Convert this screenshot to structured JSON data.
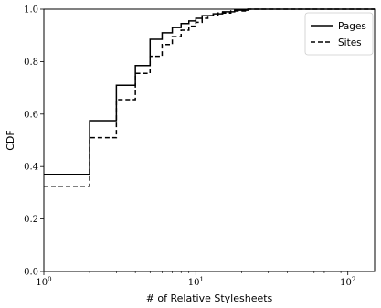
{
  "chart_data": {
    "type": "line",
    "xlabel": "# of Relative Stylesheets",
    "ylabel": "CDF",
    "xscale": "log",
    "xlim": [
      1,
      150
    ],
    "ylim": [
      0.0,
      1.0
    ],
    "x_ticks": [
      {
        "value": 1,
        "base": "10",
        "exp": "0"
      },
      {
        "value": 10,
        "base": "10",
        "exp": "1"
      },
      {
        "value": 100,
        "base": "10",
        "exp": "2"
      }
    ],
    "y_ticks": [
      "0.0",
      "0.2",
      "0.4",
      "0.6",
      "0.8",
      "1.0"
    ],
    "grid": false,
    "legend": {
      "position": "top-right"
    },
    "series": [
      {
        "name": "Pages",
        "style": "solid",
        "color": "#000000",
        "points": [
          [
            1,
            0.37
          ],
          [
            2,
            0.37
          ],
          [
            2,
            0.575
          ],
          [
            3,
            0.575
          ],
          [
            3,
            0.71
          ],
          [
            4,
            0.71
          ],
          [
            4,
            0.785
          ],
          [
            5,
            0.785
          ],
          [
            5,
            0.885
          ],
          [
            6,
            0.885
          ],
          [
            6,
            0.91
          ],
          [
            7,
            0.91
          ],
          [
            7,
            0.93
          ],
          [
            8,
            0.93
          ],
          [
            8,
            0.945
          ],
          [
            9,
            0.945
          ],
          [
            9,
            0.955
          ],
          [
            10,
            0.955
          ],
          [
            10,
            0.965
          ],
          [
            11,
            0.965
          ],
          [
            11,
            0.975
          ],
          [
            13,
            0.975
          ],
          [
            13,
            0.982
          ],
          [
            15,
            0.982
          ],
          [
            15,
            0.99
          ],
          [
            18,
            0.99
          ],
          [
            18,
            0.996
          ],
          [
            22,
            0.996
          ],
          [
            22,
            1.0
          ],
          [
            150,
            1.0
          ]
        ]
      },
      {
        "name": "Sites",
        "style": "dashed",
        "color": "#000000",
        "points": [
          [
            1,
            0.325
          ],
          [
            2,
            0.325
          ],
          [
            2,
            0.51
          ],
          [
            3,
            0.51
          ],
          [
            3,
            0.655
          ],
          [
            4,
            0.655
          ],
          [
            4,
            0.755
          ],
          [
            5,
            0.755
          ],
          [
            5,
            0.82
          ],
          [
            6,
            0.82
          ],
          [
            6,
            0.865
          ],
          [
            7,
            0.865
          ],
          [
            7,
            0.895
          ],
          [
            8,
            0.895
          ],
          [
            8,
            0.92
          ],
          [
            9,
            0.92
          ],
          [
            9,
            0.935
          ],
          [
            10,
            0.935
          ],
          [
            10,
            0.95
          ],
          [
            11,
            0.95
          ],
          [
            11,
            0.965
          ],
          [
            12,
            0.965
          ],
          [
            12,
            0.975
          ],
          [
            14,
            0.975
          ],
          [
            14,
            0.985
          ],
          [
            17,
            0.985
          ],
          [
            17,
            0.993
          ],
          [
            22,
            0.993
          ],
          [
            22,
            1.0
          ],
          [
            150,
            1.0
          ]
        ]
      }
    ]
  }
}
